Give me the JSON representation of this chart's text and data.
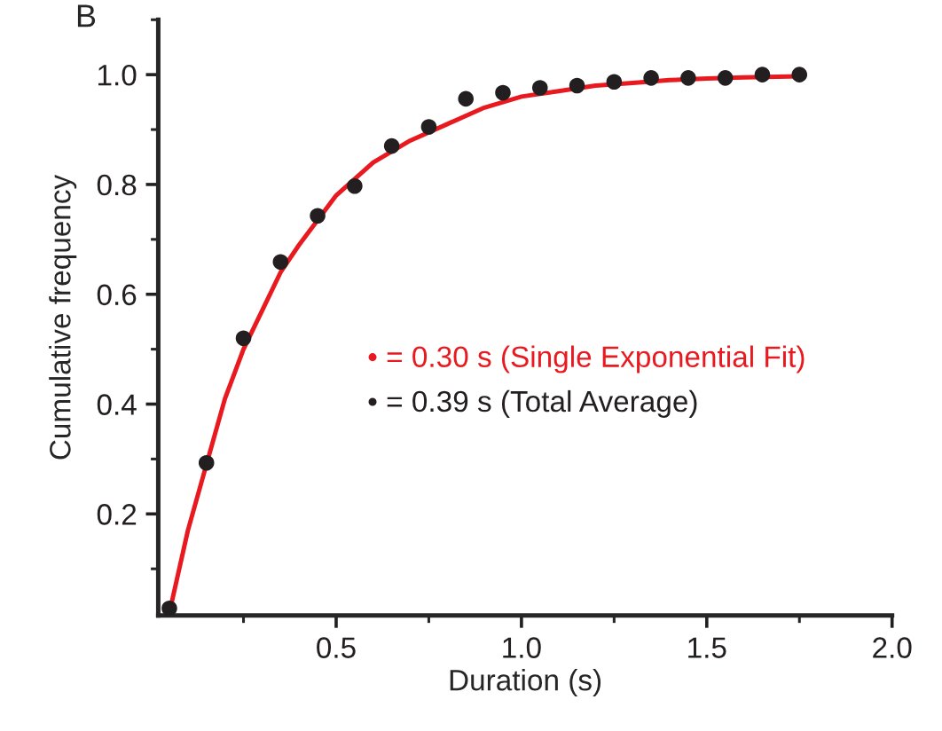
{
  "chart_data": {
    "type": "scatter",
    "title": "B",
    "xlabel": "Duration (s)",
    "ylabel": "Cumulative frequency",
    "xlim": [
      0.02,
      2.0
    ],
    "xticks": [
      0.5,
      {
        "value": 1,
        "label": "1.0"
      },
      1.5,
      {
        "value": 2,
        "label": "2.0"
      }
    ],
    "ylim": [
      0.015,
      1.1
    ],
    "yticks": [
      0.2,
      0.4,
      0.6,
      0.8,
      {
        "value": 1,
        "label": "1.0"
      }
    ],
    "grid": false,
    "series": [
      {
        "type": "line",
        "marker": "none",
        "color": "#e8191f",
        "x": [
          0.05,
          0.1,
          0.15,
          0.2,
          0.25,
          0.3,
          0.35,
          0.4,
          0.5,
          0.6,
          0.7,
          0.8,
          0.9,
          1.0,
          1.1,
          1.2,
          1.3,
          1.4,
          1.5,
          1.6,
          1.75
        ],
        "values": [
          0.02,
          0.17,
          0.29,
          0.41,
          0.5,
          0.57,
          0.64,
          0.69,
          0.78,
          0.84,
          0.88,
          0.91,
          0.94,
          0.96,
          0.97,
          0.98,
          0.985,
          0.99,
          0.993,
          0.995,
          0.997
        ]
      },
      {
        "marker": "circle",
        "color": "#231f20",
        "x": [
          0.05,
          0.15,
          0.25,
          0.35,
          0.45,
          0.55,
          0.65,
          0.75,
          0.85,
          0.95,
          1.05,
          1.15,
          1.25,
          1.35,
          1.45,
          1.55,
          1.65,
          1.75
        ],
        "values": [
          0.028,
          0.293,
          0.52,
          0.659,
          0.743,
          0.797,
          0.87,
          0.905,
          0.956,
          0.967,
          0.976,
          0.98,
          0.987,
          0.994,
          0.994,
          0.994,
          1.0,
          1.0
        ]
      }
    ],
    "annotations": [
      "• = 0.30 s (Single Exponential Fit)",
      "• = 0.39 s (Total Average)"
    ]
  }
}
